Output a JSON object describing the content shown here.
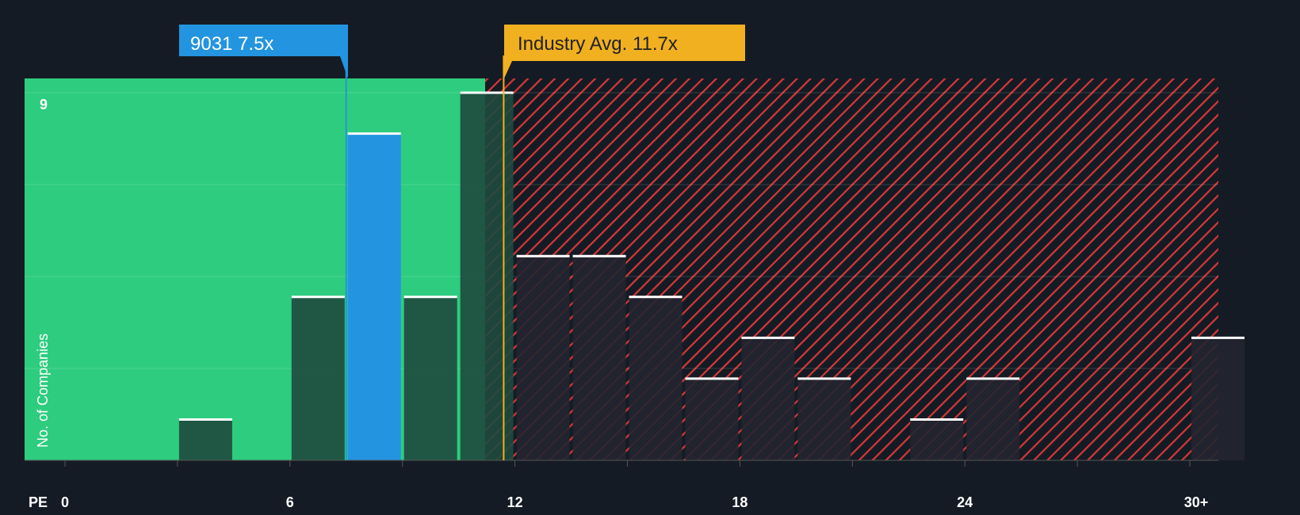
{
  "chart_data": {
    "type": "bar",
    "title": "",
    "xlabel": "PE",
    "ylabel": "No. of Companies",
    "x_ticks": [
      "0",
      "6",
      "12",
      "18",
      "24",
      "30+"
    ],
    "x_tick_values": [
      0,
      6,
      12,
      18,
      24,
      30
    ],
    "y_ticks": [
      "9"
    ],
    "ylim": [
      0,
      9
    ],
    "bin_width": 1.5,
    "bins_start": [
      0,
      1.5,
      3,
      4.5,
      6,
      7.5,
      9,
      10.5,
      12,
      13.5,
      15,
      16.5,
      18,
      19.5,
      21,
      22.5,
      24,
      25.5,
      27,
      28.5,
      30
    ],
    "values": [
      0,
      0,
      1,
      0,
      4,
      8,
      4,
      9,
      5,
      5,
      4,
      2,
      3,
      2,
      0,
      1,
      2,
      0,
      0,
      0,
      3
    ],
    "highlight_bin_start": 7.5,
    "company": {
      "label": "9031 7.5x",
      "value": 7.5,
      "color": "#2394e0"
    },
    "industry": {
      "label": "Industry Avg. 11.7x",
      "value": 11.7,
      "color": "#f0b020"
    },
    "colors": {
      "background": "#151b24",
      "fair": "#2ecc7f",
      "overvalued": "#d63838",
      "bar_fair": "#1e4a3e",
      "bar_over": "#222530"
    }
  }
}
